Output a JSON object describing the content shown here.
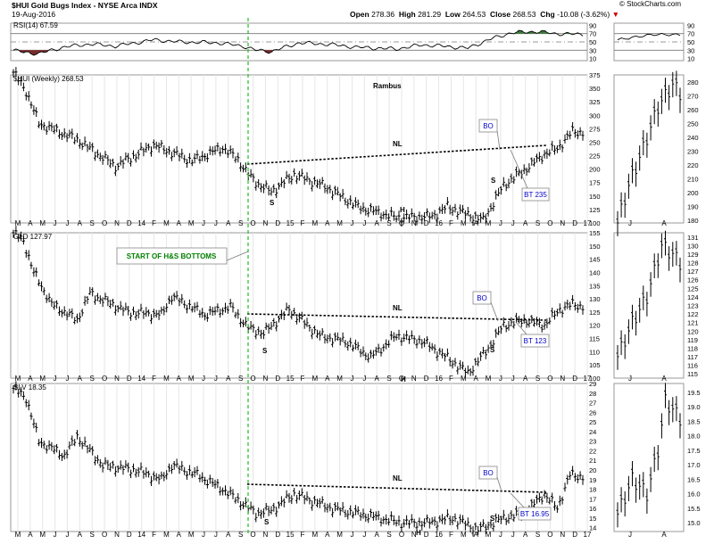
{
  "header": {
    "title": "$HUI Gold Bugs Index - NYSE Arca INDX",
    "date": "19-Aug-2016",
    "open_label": "Open",
    "open": "278.36",
    "high_label": "High",
    "high": "281.29",
    "low_label": "Low",
    "low": "264.53",
    "close_label": "Close",
    "close": "268.53",
    "chg_label": "Chg",
    "chg": "-10.08 (-3.62%)",
    "chg_arrow": "▼",
    "source": "© StockCharts.com"
  },
  "colors": {
    "price": "#000000",
    "rsi_line": "#000000",
    "rsi_overbought": "#3a7a3a",
    "rsi_oversold": "#7a2a2a",
    "callout_text": "#0000cc",
    "start_text": "#008000",
    "green_line": "#22bb22"
  },
  "rsi": {
    "label": "RSI(14) 67.59",
    "ticks": [
      "90",
      "70",
      "50",
      "30",
      "10"
    ]
  },
  "x_axis": {
    "labels": [
      "M",
      "A",
      "M",
      "J",
      "J",
      "A",
      "S",
      "O",
      "N",
      "D",
      "14",
      "F",
      "M",
      "A",
      "M",
      "J",
      "J",
      "A",
      "S",
      "O",
      "N",
      "D",
      "15",
      "F",
      "M",
      "A",
      "M",
      "J",
      "J",
      "A",
      "S",
      "O",
      "N",
      "D",
      "16",
      "F",
      "M",
      "A",
      "M",
      "J",
      "J",
      "A",
      "S",
      "O",
      "N",
      "D",
      "17"
    ],
    "right_labels": [
      "J",
      "A"
    ]
  },
  "annotations": {
    "rambus": "Rambus",
    "start": "START OF H&S BOTTOMS"
  },
  "chart_data": [
    {
      "type": "line",
      "title": "$HUI (Weekly) 268.53",
      "price_kind": "ohlc-bars",
      "yticks": [
        "375",
        "350",
        "325",
        "300",
        "275",
        "250",
        "225",
        "200",
        "175",
        "150",
        "125",
        "100"
      ],
      "right_yticks": [
        "280",
        "270",
        "260",
        "250",
        "240",
        "230",
        "220",
        "210",
        "200",
        "190",
        "180"
      ],
      "waypoints": [
        [
          0,
          380
        ],
        [
          5,
          345
        ],
        [
          10,
          285
        ],
        [
          25,
          255
        ],
        [
          40,
          205
        ],
        [
          55,
          245
        ],
        [
          70,
          215
        ],
        [
          82,
          240
        ],
        [
          88,
          218
        ],
        [
          92,
          190
        ],
        [
          96,
          172
        ],
        [
          101,
          158
        ],
        [
          110,
          190
        ],
        [
          122,
          168
        ],
        [
          135,
          130
        ],
        [
          150,
          110
        ],
        [
          164,
          112
        ],
        [
          170,
          130
        ],
        [
          184,
          105
        ],
        [
          192,
          170
        ],
        [
          202,
          205
        ],
        [
          208,
          228
        ],
        [
          213,
          238
        ],
        [
          219,
          270
        ],
        [
          223,
          268
        ]
      ],
      "right_waypoints": [
        [
          0,
          178
        ],
        [
          3,
          205
        ],
        [
          7,
          232
        ],
        [
          11,
          262
        ],
        [
          15,
          278
        ],
        [
          17,
          272
        ]
      ],
      "labels": {
        "nl": "NL",
        "s_left": "S",
        "head": "H",
        "s_right": "S",
        "bo": "BO",
        "bt": "BT 235"
      }
    },
    {
      "type": "line",
      "title": "GLD 127.97",
      "price_kind": "ohlc-bars",
      "yticks": [
        "155",
        "150",
        "145",
        "140",
        "135",
        "130",
        "125",
        "120",
        "115",
        "110",
        "105",
        "100"
      ],
      "right_yticks": [
        "131",
        "130",
        "129",
        "128",
        "127",
        "126",
        "125",
        "124",
        "123",
        "122",
        "121",
        "120",
        "119",
        "118",
        "117",
        "116",
        "115"
      ],
      "waypoints": [
        [
          0,
          155
        ],
        [
          4,
          152
        ],
        [
          8,
          140
        ],
        [
          15,
          128
        ],
        [
          25,
          122
        ],
        [
          30,
          132
        ],
        [
          45,
          125
        ],
        [
          58,
          124
        ],
        [
          62,
          131
        ],
        [
          75,
          124
        ],
        [
          85,
          127
        ],
        [
          92,
          119
        ],
        [
          98,
          117
        ],
        [
          108,
          126
        ],
        [
          120,
          116
        ],
        [
          130,
          114
        ],
        [
          140,
          108
        ],
        [
          150,
          116
        ],
        [
          160,
          114
        ],
        [
          168,
          109
        ],
        [
          178,
          102
        ],
        [
          185,
          110
        ],
        [
          192,
          120
        ],
        [
          200,
          122
        ],
        [
          208,
          120
        ],
        [
          214,
          126
        ],
        [
          219,
          128
        ],
        [
          223,
          127
        ]
      ],
      "right_waypoints": [
        [
          0,
          117
        ],
        [
          4,
          121
        ],
        [
          8,
          124
        ],
        [
          12,
          130
        ],
        [
          15,
          129
        ],
        [
          17,
          128
        ]
      ],
      "labels": {
        "nl": "NL",
        "s_left": "S",
        "head": "H",
        "s_right": "S",
        "bo": "BO",
        "bt": "BT 123"
      }
    },
    {
      "type": "line",
      "title": "SLV 18.35",
      "price_kind": "ohlc-bars",
      "yticks": [
        "29",
        "28",
        "27",
        "26",
        "25",
        "24",
        "23",
        "22",
        "21",
        "20",
        "19",
        "18",
        "17",
        "16",
        "15",
        "14"
      ],
      "right_yticks": [
        "19.5",
        "19.0",
        "18.5",
        "18.0",
        "17.5",
        "17.0",
        "16.5",
        "16.0",
        "15.5",
        "15.0"
      ],
      "waypoints": [
        [
          0,
          28.5
        ],
        [
          5,
          27.5
        ],
        [
          10,
          23
        ],
        [
          20,
          21.5
        ],
        [
          25,
          23.5
        ],
        [
          35,
          20.5
        ],
        [
          48,
          20
        ],
        [
          58,
          19
        ],
        [
          62,
          20.5
        ],
        [
          72,
          19.5
        ],
        [
          82,
          18
        ],
        [
          90,
          16.5
        ],
        [
          95,
          15.5
        ],
        [
          101,
          15.8
        ],
        [
          110,
          17.5
        ],
        [
          125,
          16
        ],
        [
          140,
          15.2
        ],
        [
          152,
          14.5
        ],
        [
          162,
          14.5
        ],
        [
          172,
          15
        ],
        [
          182,
          13.8
        ],
        [
          192,
          15
        ],
        [
          200,
          15.5
        ],
        [
          208,
          17.5
        ],
        [
          213,
          16
        ],
        [
          218,
          19.5
        ],
        [
          223,
          19.3
        ]
      ],
      "right_waypoints": [
        [
          0,
          15.3
        ],
        [
          4,
          16.5
        ],
        [
          8,
          16
        ],
        [
          11,
          17.5
        ],
        [
          13,
          19.2
        ],
        [
          17,
          18.6
        ]
      ],
      "labels": {
        "nl": "NL",
        "s_left": "S",
        "head": "H",
        "s_right": "S",
        "bo": "BO",
        "bt": "BT 16.95"
      }
    }
  ]
}
